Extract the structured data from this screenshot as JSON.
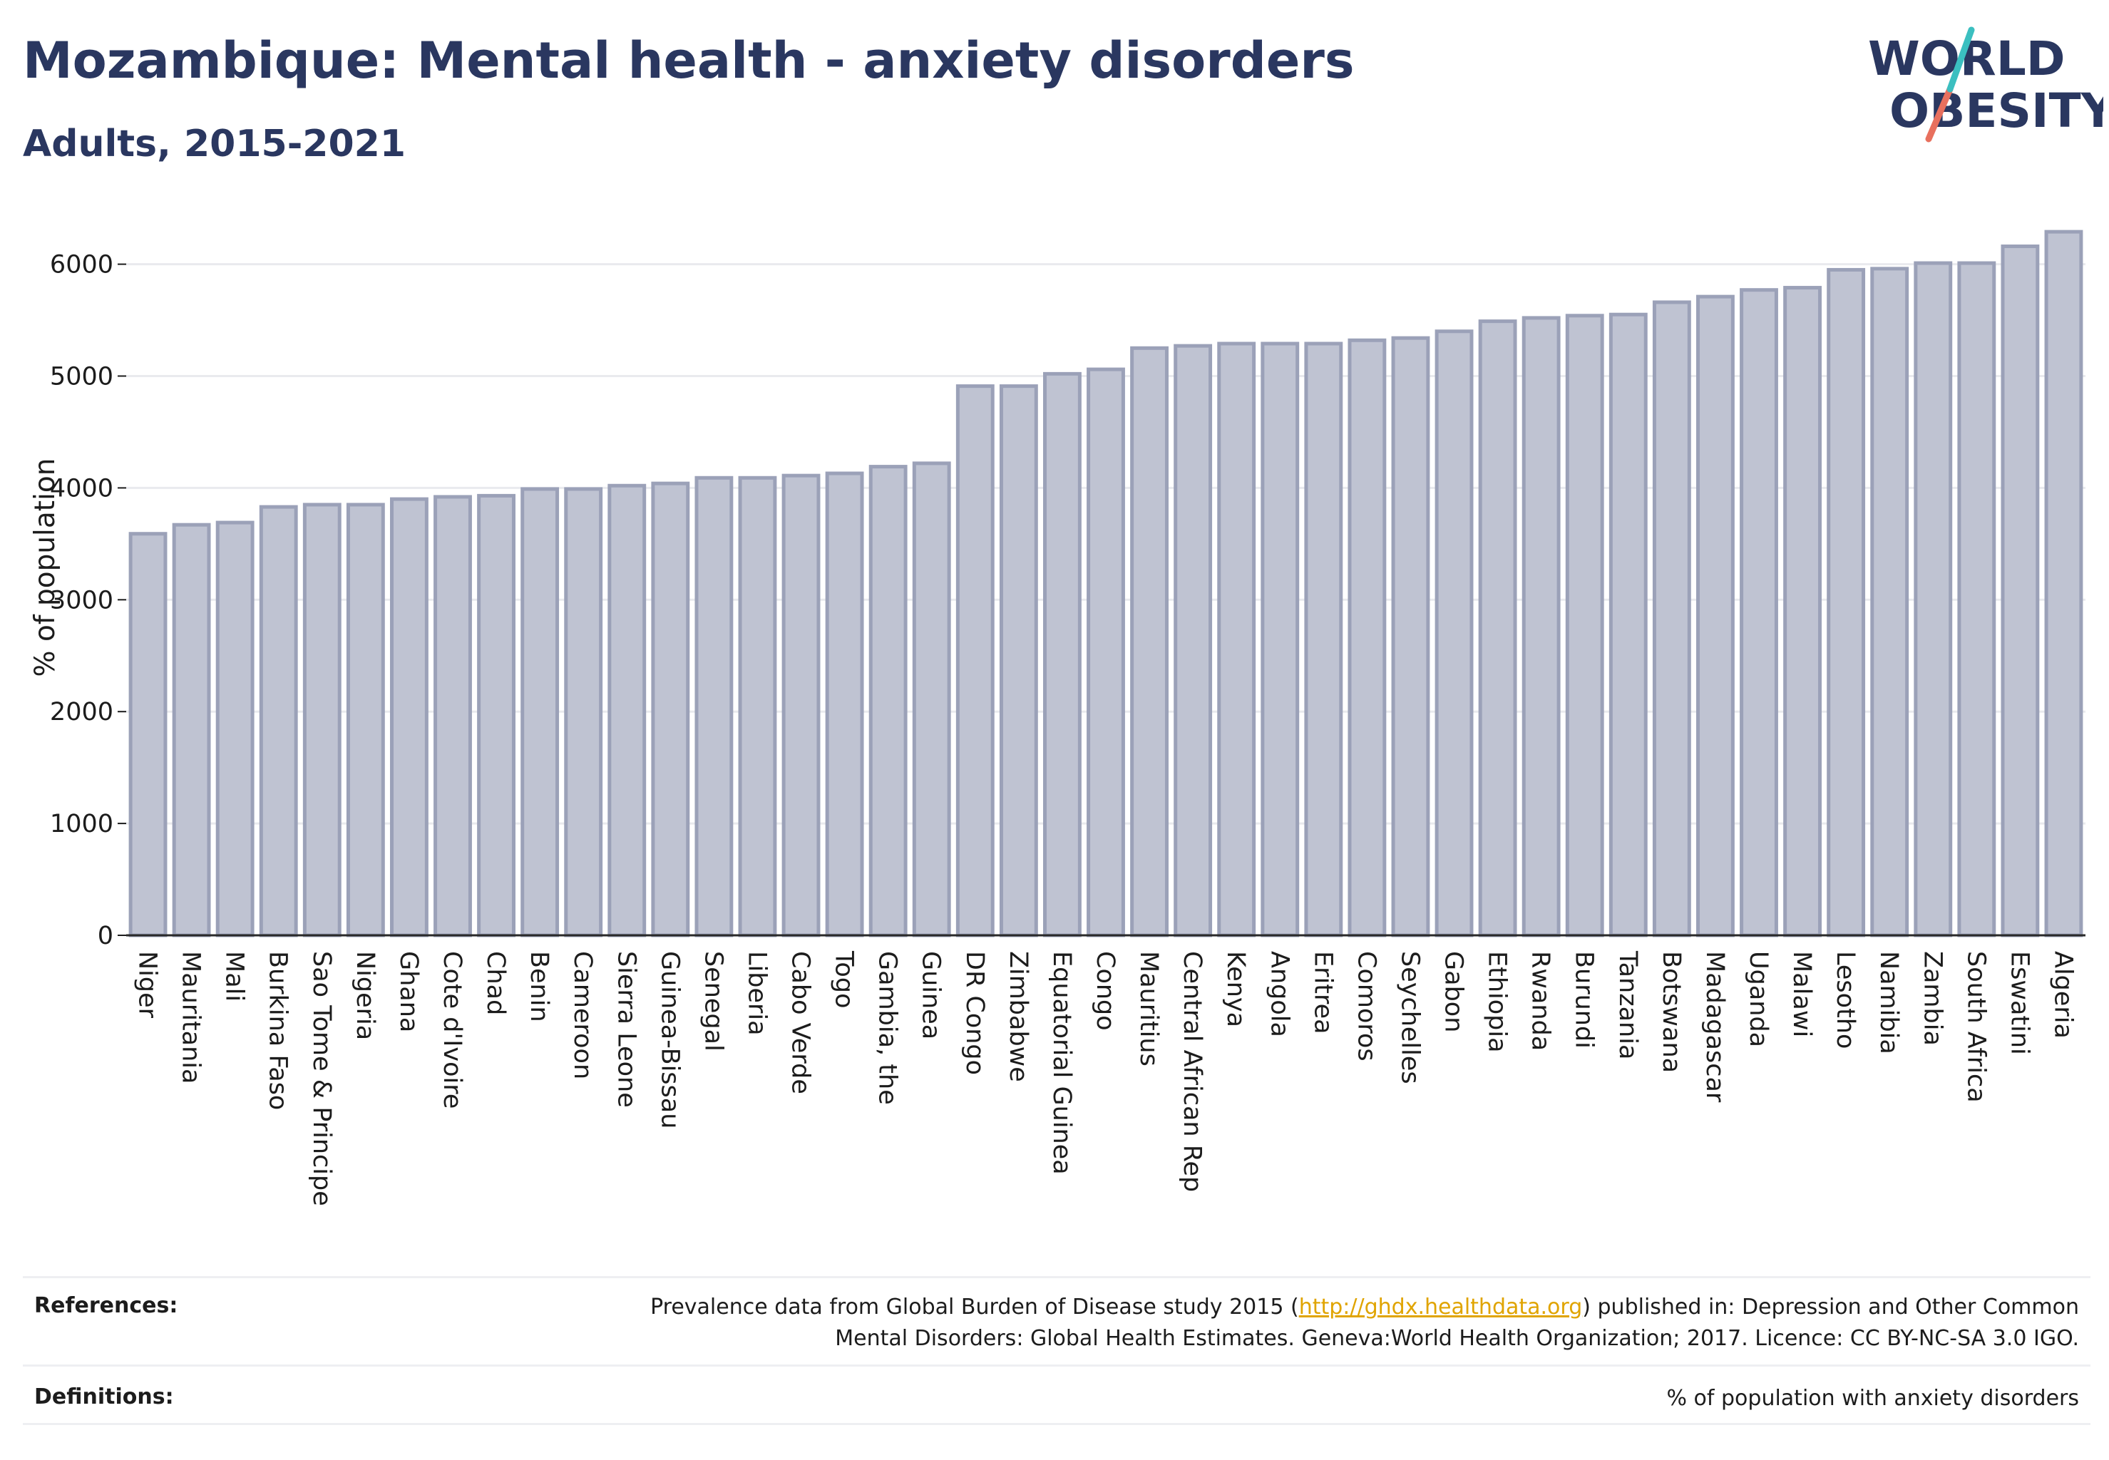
{
  "header": {
    "title": "Mozambique: Mental health - anxiety disorders",
    "subtitle": "Adults, 2015-2021"
  },
  "logo": {
    "line1": "WORLD",
    "line2": "OBESITY",
    "colors": {
      "text": "#2a3760",
      "slash_teal": "#3bbfc0",
      "slash_red": "#e8705e"
    }
  },
  "chart_data": {
    "type": "bar",
    "ylabel": "% of population",
    "ylim": [
      0,
      6450
    ],
    "yticks": [
      0,
      1000,
      2000,
      3000,
      4000,
      5000,
      6000
    ],
    "grid": true,
    "bar_color": "#bfc3d2",
    "bar_edge_color": "#9ba1b8",
    "categories": [
      "Niger",
      "Mauritania",
      "Mali",
      "Burkina Faso",
      "Sao Tome & Principe",
      "Nigeria",
      "Ghana",
      "Cote d'Ivoire",
      "Chad",
      "Benin",
      "Cameroon",
      "Sierra Leone",
      "Guinea-Bissau",
      "Senegal",
      "Liberia",
      "Cabo Verde",
      "Togo",
      "Gambia, the",
      "Guinea",
      "DR Congo",
      "Zimbabwe",
      "Equatorial Guinea",
      "Congo",
      "Mauritius",
      "Central African Rep",
      "Kenya",
      "Angola",
      "Eritrea",
      "Comoros",
      "Seychelles",
      "Gabon",
      "Ethiopia",
      "Rwanda",
      "Burundi",
      "Tanzania",
      "Botswana",
      "Madagascar",
      "Uganda",
      "Malawi",
      "Lesotho",
      "Namibia",
      "Zambia",
      "South Africa",
      "Eswatini",
      "Algeria"
    ],
    "values": [
      3590,
      3670,
      3690,
      3830,
      3850,
      3850,
      3900,
      3920,
      3930,
      3990,
      3990,
      4020,
      4040,
      4090,
      4090,
      4110,
      4130,
      4190,
      4220,
      4910,
      4910,
      5020,
      5060,
      5250,
      5270,
      5290,
      5290,
      5290,
      5320,
      5340,
      5400,
      5490,
      5520,
      5540,
      5550,
      5660,
      5710,
      5770,
      5790,
      5950,
      5960,
      6010,
      6010,
      6160,
      6290
    ]
  },
  "footer": {
    "references_label": "References:",
    "references_pre": "Prevalence data from Global Burden of Disease study 2015 (",
    "references_link": "http://ghdx.healthdata.org",
    "references_post": ") published in: Depression and Other Common",
    "references_line2": "Mental Disorders: Global Health Estimates. Geneva:World Health Organization; 2017. Licence: CC BY-NC-SA 3.0 IGO.",
    "definitions_label": "Definitions:",
    "definitions_text": "% of population with anxiety disorders"
  }
}
